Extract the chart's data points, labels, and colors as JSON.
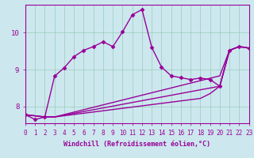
{
  "xlabel": "Windchill (Refroidissement éolien,°C)",
  "bg_color": "#cce8ee",
  "line_color": "#990099",
  "grid_color": "#99ccbb",
  "xmin": 0,
  "xmax": 23,
  "ymin": 7.55,
  "ymax": 10.75,
  "yticks": [
    8,
    9,
    10
  ],
  "xticks": [
    0,
    1,
    2,
    3,
    4,
    5,
    6,
    7,
    8,
    9,
    10,
    11,
    12,
    13,
    14,
    15,
    16,
    17,
    18,
    19,
    20,
    21,
    22,
    23
  ],
  "line1_x": [
    0,
    1,
    2,
    3,
    4,
    5,
    6,
    7,
    8,
    9,
    10,
    11,
    12,
    13,
    14,
    15,
    16,
    17,
    18,
    19,
    20,
    21,
    22,
    23
  ],
  "line1_y": [
    7.78,
    7.65,
    7.72,
    8.82,
    9.05,
    9.35,
    9.52,
    9.62,
    9.75,
    9.62,
    10.02,
    10.48,
    10.62,
    9.6,
    9.07,
    8.83,
    8.78,
    8.73,
    8.77,
    8.73,
    8.55,
    9.52,
    9.62,
    9.58
  ],
  "line2_x": [
    0,
    2,
    3,
    20,
    21,
    22,
    23
  ],
  "line2_y": [
    7.78,
    7.72,
    7.72,
    8.83,
    9.52,
    9.62,
    9.58
  ],
  "line3_x": [
    0,
    2,
    3,
    20,
    21,
    22,
    23
  ],
  "line3_y": [
    7.78,
    7.72,
    7.72,
    8.55,
    9.52,
    9.62,
    9.58
  ],
  "line4_x": [
    0,
    2,
    3,
    18,
    19,
    20,
    21,
    22,
    23
  ],
  "line4_y": [
    7.78,
    7.72,
    7.72,
    8.22,
    8.35,
    8.55,
    9.52,
    9.62,
    9.58
  ],
  "marker": "D",
  "markersize": 2.5,
  "linewidth": 1.0,
  "tick_fontsize": 5.5,
  "label_fontsize": 6.0
}
